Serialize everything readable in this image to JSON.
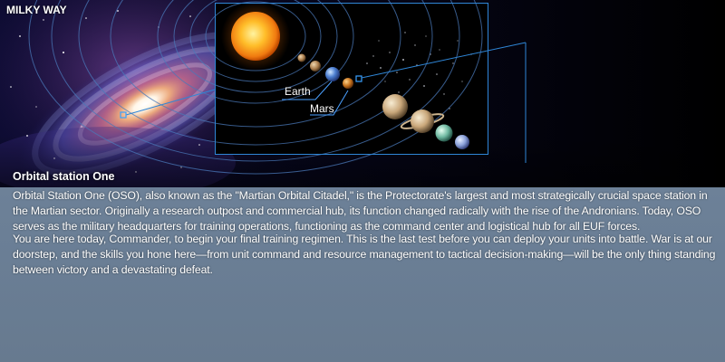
{
  "map": {
    "galaxy_label": "MILKY WAY",
    "labels": {
      "earth": "Earth",
      "mars": "Mars"
    },
    "colors": {
      "frame": "#2f86d6",
      "panel": "#6b7f96"
    }
  },
  "briefing": {
    "title": "Orbital station One",
    "paragraphs": [
      "Orbital Station One (OSO), also known as the \"Martian Orbital Citadel,\" is the Protectorate's largest and most strategically crucial space station in the Martian sector. Originally a research outpost and commercial hub, its function changed radically with the rise of the Andronians. Today, OSO serves as the military headquarters for training operations, functioning as the command center and logistical hub for all EUF forces.",
      "You are here today, Commander, to begin your final training regimen. This is the last test before you can deploy your units into battle. War is at our doorstep, and the skills you hone here—from unit command and resource management to tactical decision-making—will be the only thing standing between victory and a devastating defeat."
    ]
  }
}
